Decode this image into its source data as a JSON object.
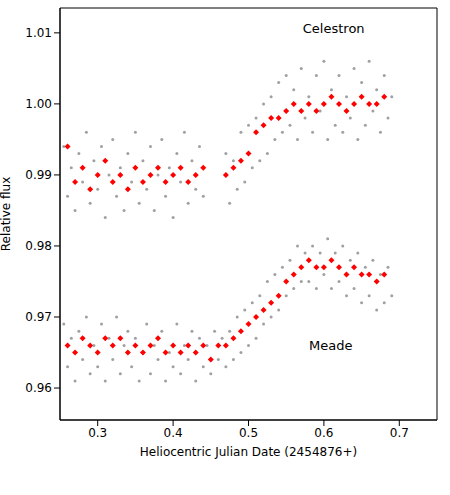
{
  "chart_data": {
    "type": "scatter",
    "x_label": "Heliocentric Julian Date (2454876+)",
    "y_label": "Relative flux",
    "xlim": [
      0.25,
      0.75
    ],
    "xticks": [
      0.3,
      0.4,
      0.5,
      0.6,
      0.7
    ],
    "ylim": [
      0.9555,
      1.0135
    ],
    "yticks": [
      0.96,
      0.97,
      0.98,
      0.99,
      {
        "value": 1,
        "label": "1.00"
      },
      1.01
    ],
    "grid": false,
    "annotations": [
      {
        "text": "Celestron",
        "x": 0.613,
        "y": 1.0107
      },
      {
        "text": "Meade",
        "x": 0.609,
        "y": 0.966
      }
    ],
    "series": [
      {
        "color": "#a0a0a0",
        "marker": "circle",
        "x": [
          0.255,
          0.26,
          0.265,
          0.27,
          0.275,
          0.28,
          0.285,
          0.29,
          0.295,
          0.3,
          0.305,
          0.31,
          0.315,
          0.32,
          0.325,
          0.33,
          0.335,
          0.34,
          0.345,
          0.35,
          0.355,
          0.36,
          0.365,
          0.37,
          0.375,
          0.38,
          0.385,
          0.39,
          0.395,
          0.4,
          0.405,
          0.41,
          0.415,
          0.42,
          0.425,
          0.43,
          0.435,
          0.44,
          0.47,
          0.475,
          0.48,
          0.485,
          0.49,
          0.495,
          0.5,
          0.505,
          0.51,
          0.515,
          0.52,
          0.525,
          0.53,
          0.535,
          0.54,
          0.545,
          0.55,
          0.555,
          0.56,
          0.565,
          0.57,
          0.575,
          0.58,
          0.585,
          0.59,
          0.595,
          0.6,
          0.605,
          0.61,
          0.615,
          0.62,
          0.625,
          0.63,
          0.635,
          0.64,
          0.645,
          0.65,
          0.655,
          0.66,
          0.665,
          0.67,
          0.675,
          0.68,
          0.685,
          0.69
        ],
        "values": [
          0.994,
          0.987,
          0.991,
          0.985,
          0.993,
          0.989,
          0.996,
          0.986,
          0.992,
          0.988,
          0.994,
          0.984,
          0.99,
          0.995,
          0.987,
          0.991,
          0.985,
          0.993,
          0.989,
          0.996,
          0.986,
          0.992,
          0.988,
          0.994,
          0.985,
          0.99,
          0.995,
          0.987,
          0.991,
          0.984,
          0.993,
          0.989,
          0.996,
          0.986,
          0.992,
          0.988,
          0.994,
          0.987,
          0.993,
          0.986,
          0.992,
          0.988,
          0.996,
          0.989,
          0.997,
          0.991,
          0.998,
          0.992,
          1.0,
          0.993,
          1.001,
          0.995,
          1.003,
          0.996,
          1.004,
          0.997,
          1.002,
          0.995,
          1.005,
          0.998,
          1.001,
          0.996,
          1.004,
          0.999,
          1.006,
          0.995,
          1.002,
          0.997,
          1.004,
          0.996,
          1.001,
          0.998,
          1.005,
          0.995,
          1.003,
          0.997,
          1.006,
          0.999,
          1.002,
          0.996,
          1.004,
          0.998,
          1.001
        ]
      },
      {
        "color": "#a0a0a0",
        "marker": "circle",
        "x": [
          0.255,
          0.26,
          0.265,
          0.27,
          0.275,
          0.28,
          0.285,
          0.29,
          0.295,
          0.3,
          0.305,
          0.31,
          0.315,
          0.32,
          0.325,
          0.33,
          0.335,
          0.34,
          0.345,
          0.35,
          0.355,
          0.36,
          0.365,
          0.37,
          0.375,
          0.38,
          0.385,
          0.39,
          0.395,
          0.4,
          0.405,
          0.41,
          0.415,
          0.42,
          0.425,
          0.43,
          0.435,
          0.44,
          0.445,
          0.45,
          0.455,
          0.46,
          0.465,
          0.47,
          0.475,
          0.48,
          0.485,
          0.49,
          0.495,
          0.5,
          0.505,
          0.51,
          0.515,
          0.52,
          0.525,
          0.53,
          0.535,
          0.54,
          0.545,
          0.55,
          0.555,
          0.56,
          0.565,
          0.57,
          0.575,
          0.58,
          0.585,
          0.59,
          0.595,
          0.6,
          0.605,
          0.61,
          0.615,
          0.62,
          0.625,
          0.63,
          0.635,
          0.64,
          0.645,
          0.65,
          0.655,
          0.66,
          0.665,
          0.67,
          0.675,
          0.68,
          0.685,
          0.69
        ],
        "values": [
          0.969,
          0.963,
          0.967,
          0.961,
          0.968,
          0.964,
          0.97,
          0.962,
          0.966,
          0.963,
          0.969,
          0.961,
          0.967,
          0.964,
          0.97,
          0.962,
          0.966,
          0.968,
          0.963,
          0.967,
          0.961,
          0.965,
          0.969,
          0.962,
          0.966,
          0.964,
          0.968,
          0.961,
          0.965,
          0.963,
          0.969,
          0.962,
          0.966,
          0.964,
          0.968,
          0.961,
          0.967,
          0.963,
          0.966,
          0.962,
          0.968,
          0.964,
          0.967,
          0.963,
          0.968,
          0.964,
          0.97,
          0.965,
          0.971,
          0.966,
          0.972,
          0.967,
          0.973,
          0.969,
          0.975,
          0.97,
          0.976,
          0.971,
          0.977,
          0.973,
          0.978,
          0.974,
          0.98,
          0.975,
          0.979,
          0.975,
          0.98,
          0.974,
          0.979,
          0.976,
          0.981,
          0.974,
          0.979,
          0.975,
          0.98,
          0.973,
          0.978,
          0.974,
          0.979,
          0.972,
          0.977,
          0.973,
          0.978,
          0.971,
          0.976,
          0.972,
          0.977,
          0.973
        ]
      },
      {
        "color": "#ff0000",
        "marker": "diamond",
        "x": [
          0.26,
          0.27,
          0.28,
          0.29,
          0.3,
          0.31,
          0.32,
          0.33,
          0.34,
          0.35,
          0.36,
          0.37,
          0.38,
          0.39,
          0.4,
          0.41,
          0.42,
          0.43,
          0.44,
          0.47,
          0.48,
          0.49,
          0.5,
          0.51,
          0.52,
          0.53,
          0.54,
          0.55,
          0.56,
          0.57,
          0.58,
          0.59,
          0.6,
          0.61,
          0.62,
          0.63,
          0.64,
          0.65,
          0.66,
          0.67,
          0.68
        ],
        "values": [
          0.994,
          0.989,
          0.991,
          0.988,
          0.99,
          0.992,
          0.989,
          0.99,
          0.988,
          0.991,
          0.989,
          0.99,
          0.991,
          0.989,
          0.99,
          0.991,
          0.989,
          0.99,
          0.991,
          0.99,
          0.991,
          0.992,
          0.993,
          0.996,
          0.997,
          0.998,
          0.998,
          0.999,
          1.0,
          0.999,
          1.0,
          0.999,
          1.0,
          1.001,
          1.0,
          0.999,
          1.0,
          1.001,
          1.0,
          1.0,
          1.001
        ]
      },
      {
        "color": "#ff0000",
        "marker": "diamond",
        "x": [
          0.26,
          0.27,
          0.28,
          0.29,
          0.3,
          0.31,
          0.32,
          0.33,
          0.34,
          0.35,
          0.36,
          0.37,
          0.38,
          0.39,
          0.4,
          0.41,
          0.42,
          0.43,
          0.44,
          0.45,
          0.46,
          0.47,
          0.48,
          0.49,
          0.5,
          0.51,
          0.52,
          0.53,
          0.54,
          0.55,
          0.56,
          0.57,
          0.58,
          0.59,
          0.6,
          0.61,
          0.62,
          0.63,
          0.64,
          0.65,
          0.66,
          0.67,
          0.68
        ],
        "values": [
          0.966,
          0.965,
          0.967,
          0.966,
          0.965,
          0.967,
          0.966,
          0.967,
          0.965,
          0.966,
          0.965,
          0.966,
          0.967,
          0.965,
          0.966,
          0.965,
          0.966,
          0.965,
          0.966,
          0.964,
          0.966,
          0.966,
          0.967,
          0.968,
          0.969,
          0.97,
          0.971,
          0.972,
          0.973,
          0.975,
          0.976,
          0.977,
          0.978,
          0.977,
          0.977,
          0.978,
          0.977,
          0.976,
          0.977,
          0.976,
          0.976,
          0.975,
          0.976
        ]
      }
    ]
  }
}
